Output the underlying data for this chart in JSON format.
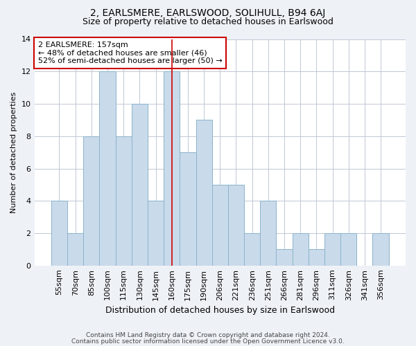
{
  "title": "2, EARLSMERE, EARLSWOOD, SOLIHULL, B94 6AJ",
  "subtitle": "Size of property relative to detached houses in Earlswood",
  "xlabel": "Distribution of detached houses by size in Earlswood",
  "ylabel": "Number of detached properties",
  "categories": [
    "55sqm",
    "70sqm",
    "85sqm",
    "100sqm",
    "115sqm",
    "130sqm",
    "145sqm",
    "160sqm",
    "175sqm",
    "190sqm",
    "206sqm",
    "221sqm",
    "236sqm",
    "251sqm",
    "266sqm",
    "281sqm",
    "296sqm",
    "311sqm",
    "326sqm",
    "341sqm",
    "356sqm"
  ],
  "values": [
    4,
    2,
    8,
    12,
    8,
    10,
    4,
    12,
    7,
    9,
    5,
    5,
    2,
    4,
    1,
    2,
    1,
    2,
    2,
    0,
    2
  ],
  "bar_color": "#c9daea",
  "bar_edge_color": "#8ab4cc",
  "vline_x": 7,
  "vline_color": "#cc0000",
  "annotation_text": "2 EARLSMERE: 157sqm\n← 48% of detached houses are smaller (46)\n52% of semi-detached houses are larger (50) →",
  "annotation_box_color": "white",
  "annotation_box_edge": "#cc0000",
  "ylim": [
    0,
    14
  ],
  "yticks": [
    0,
    2,
    4,
    6,
    8,
    10,
    12,
    14
  ],
  "footer1": "Contains HM Land Registry data © Crown copyright and database right 2024.",
  "footer2": "Contains public sector information licensed under the Open Government Licence v3.0.",
  "bg_color": "#eef2f7",
  "plot_bg_color": "#ffffff",
  "grid_color": "#c0c8d4",
  "title_fontsize": 10,
  "subtitle_fontsize": 9,
  "ylabel_fontsize": 8,
  "xlabel_fontsize": 9,
  "tick_fontsize": 8,
  "annot_fontsize": 8,
  "footer_fontsize": 6.5
}
